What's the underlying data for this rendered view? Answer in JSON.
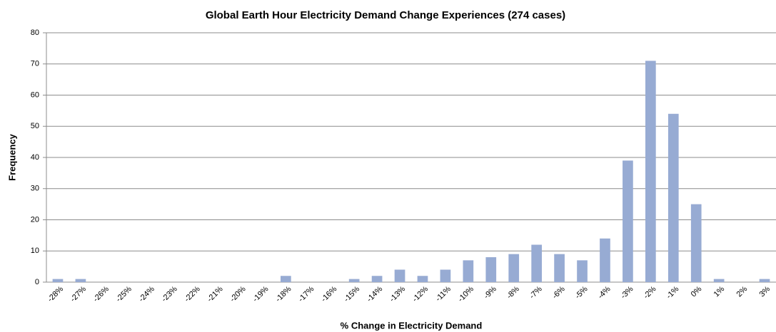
{
  "chart_data": {
    "type": "bar",
    "title": "Global Earth Hour Electricity Demand Change Experiences (274 cases)",
    "x_label": "% Change in Electricity Demand",
    "y_label": "Frequency",
    "categories": [
      "-28%",
      "-27%",
      "-26%",
      "-25%",
      "-24%",
      "-23%",
      "-22%",
      "-21%",
      "-20%",
      "-19%",
      "-18%",
      "-17%",
      "-16%",
      "-15%",
      "-14%",
      "-13%",
      "-12%",
      "-11%",
      "-10%",
      "-9%",
      "-8%",
      "-7%",
      "-6%",
      "-5%",
      "-4%",
      "-3%",
      "-2%",
      "-1%",
      "0%",
      "1%",
      "2%",
      "3%"
    ],
    "values": [
      1,
      1,
      0,
      0,
      0,
      0,
      0,
      0,
      0,
      0,
      2,
      0,
      0,
      1,
      2,
      4,
      2,
      4,
      7,
      8,
      9,
      12,
      9,
      7,
      14,
      39,
      71,
      54,
      25,
      1,
      0,
      1
    ],
    "color": "#97abd3",
    "ylim": [
      0,
      80
    ],
    "yticks": [
      0,
      10,
      20,
      30,
      40,
      50,
      60,
      70,
      80
    ],
    "grid": true
  }
}
